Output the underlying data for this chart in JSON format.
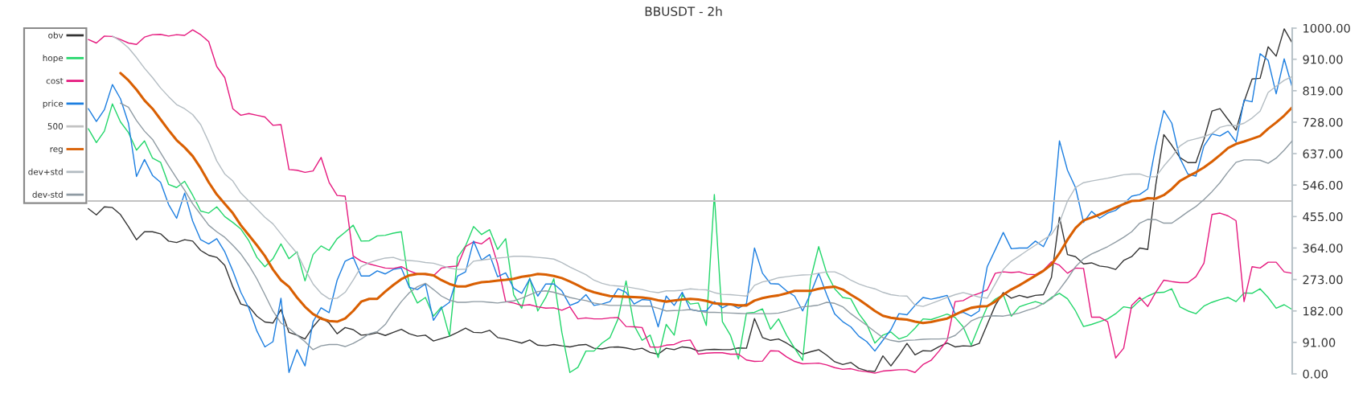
{
  "chart_data": {
    "type": "line",
    "title": "BBUSDT - 2h",
    "categories": [
      null,
      null,
      null,
      null,
      null,
      null,
      null,
      null,
      null,
      null,
      null,
      null,
      null,
      null,
      null,
      null,
      null,
      null,
      null,
      null,
      null,
      null,
      null,
      null,
      null,
      null,
      null,
      null,
      null,
      null,
      null,
      null,
      null,
      null,
      null,
      null,
      null,
      null,
      null,
      null,
      null,
      null,
      null,
      null,
      null,
      null,
      null,
      null,
      null,
      null,
      null,
      null,
      null,
      null,
      null,
      null,
      null,
      null,
      null,
      null,
      null,
      null,
      null,
      null,
      null,
      null,
      null,
      null,
      null,
      null,
      null,
      null,
      null,
      null,
      null,
      null,
      null,
      null,
      null,
      null,
      null,
      null,
      null,
      null,
      null,
      null,
      null,
      null,
      null,
      null,
      null,
      null,
      null,
      null,
      null,
      null,
      null,
      null,
      null,
      null,
      null,
      null,
      null,
      null,
      null,
      null,
      null,
      null,
      null,
      null,
      null,
      null,
      null,
      null,
      null,
      null,
      null,
      null,
      null,
      null,
      null,
      null,
      null,
      null,
      null,
      null,
      null,
      null,
      null,
      null,
      null,
      null,
      null,
      null,
      null,
      null,
      null,
      null,
      null,
      null,
      null,
      null,
      null,
      null,
      null,
      null,
      null,
      null,
      null,
      null,
      null,
      null,
      null,
      null,
      null,
      null,
      null,
      null,
      null
    ],
    "series": [
      {
        "name": "obv",
        "color": "#333333",
        "values": [
          null,
          null,
          null,
          null,
          null,
          null,
          null,
          null,
          478,
          460,
          483,
          481,
          461,
          426,
          388,
          411,
          411,
          405,
          384,
          380,
          388,
          384,
          357,
          343,
          337,
          314,
          252,
          202,
          195,
          167,
          150,
          147,
          186,
          120,
          112,
          101,
          136,
          163,
          147,
          116,
          134,
          128,
          112,
          114,
          119,
          111,
          120,
          129,
          116,
          109,
          112,
          95,
          102,
          109,
          120,
          132,
          120,
          119,
          126,
          105,
          101,
          95,
          89,
          98,
          83,
          81,
          85,
          81,
          78,
          83,
          85,
          74,
          72,
          77,
          78,
          75,
          70,
          74,
          62,
          57,
          74,
          70,
          78,
          75,
          66,
          70,
          71,
          70,
          70,
          75,
          74,
          160,
          105,
          97,
          101,
          89,
          74,
          57,
          64,
          70,
          54,
          35,
          27,
          33,
          16,
          9,
          7,
          52,
          23,
          54,
          88,
          55,
          67,
          66,
          79,
          89,
          78,
          81,
          80,
          88,
          143,
          198,
          235,
          219,
          227,
          221,
          227,
          229,
          279,
          453,
          345,
          339,
          318,
          321,
          312,
          309,
          302,
          328,
          339,
          364,
          360,
          547,
          692,
          661,
          626,
          611,
          611,
          678,
          760,
          767,
          736,
          705,
          787,
          853,
          855,
          946,
          919,
          998,
          957
        ]
      },
      {
        "name": "hope",
        "color": "#22d66a",
        "values": [
          null,
          null,
          null,
          null,
          null,
          null,
          null,
          null,
          709,
          669,
          702,
          781,
          729,
          698,
          647,
          674,
          624,
          612,
          548,
          539,
          557,
          517,
          471,
          465,
          483,
          455,
          438,
          419,
          385,
          337,
          310,
          333,
          376,
          333,
          353,
          269,
          345,
          370,
          357,
          391,
          410,
          430,
          384,
          385,
          399,
          401,
          407,
          411,
          252,
          205,
          221,
          167,
          194,
          109,
          337,
          370,
          426,
          403,
          417,
          360,
          391,
          229,
          190,
          277,
          182,
          221,
          275,
          120,
          4,
          19,
          66,
          66,
          89,
          105,
          159,
          269,
          140,
          97,
          112,
          47,
          143,
          112,
          229,
          202,
          205,
          140,
          519,
          151,
          112,
          43,
          176,
          178,
          188,
          129,
          159,
          112,
          74,
          39,
          275,
          368,
          291,
          246,
          221,
          217,
          174,
          143,
          89,
          112,
          121,
          101,
          109,
          132,
          159,
          157,
          165,
          173,
          163,
          136,
          83,
          140,
          194,
          216,
          229,
          167,
          194,
          202,
          209,
          202,
          221,
          233,
          217,
          182,
          137,
          143,
          151,
          159,
          174,
          194,
          190,
          212,
          225,
          235,
          236,
          246,
          194,
          182,
          174,
          196,
          207,
          215,
          221,
          209,
          234,
          233,
          246,
          221,
          190,
          200,
          186
        ]
      },
      {
        "name": "cost",
        "color": "#e5197e",
        "values": [
          null,
          null,
          null,
          null,
          null,
          null,
          null,
          null,
          967,
          957,
          977,
          976,
          967,
          957,
          953,
          974,
          981,
          982,
          977,
          981,
          979,
          995,
          981,
          961,
          889,
          857,
          767,
          748,
          753,
          748,
          743,
          719,
          721,
          591,
          589,
          583,
          587,
          626,
          554,
          516,
          514,
          341,
          326,
          318,
          312,
          306,
          305,
          310,
          298,
          289,
          287,
          284,
          306,
          310,
          312,
          368,
          382,
          376,
          394,
          318,
          209,
          205,
          198,
          200,
          194,
          190,
          191,
          184,
          194,
          159,
          162,
          159,
          159,
          162,
          163,
          137,
          136,
          134,
          78,
          77,
          83,
          85,
          95,
          98,
          57,
          60,
          61,
          61,
          57,
          57,
          40,
          36,
          37,
          67,
          66,
          49,
          36,
          29,
          30,
          31,
          26,
          18,
          13,
          15,
          9,
          6,
          2,
          8,
          10,
          12,
          12,
          4,
          27,
          39,
          66,
          97,
          209,
          212,
          225,
          233,
          243,
          291,
          295,
          293,
          295,
          288,
          287,
          300,
          324,
          314,
          291,
          306,
          305,
          164,
          164,
          151,
          46,
          74,
          198,
          221,
          195,
          236,
          271,
          267,
          264,
          264,
          281,
          320,
          461,
          465,
          457,
          443,
          209,
          310,
          306,
          323,
          323,
          295,
          291
        ]
      },
      {
        "name": "price",
        "color": "#1c7ee0",
        "values": [
          null,
          null,
          null,
          null,
          null,
          null,
          null,
          null,
          767,
          730,
          764,
          837,
          796,
          725,
          571,
          620,
          574,
          554,
          490,
          450,
          523,
          442,
          388,
          376,
          391,
          353,
          298,
          236,
          190,
          124,
          78,
          93,
          219,
          4,
          70,
          23,
          151,
          191,
          177,
          271,
          326,
          337,
          283,
          283,
          298,
          289,
          302,
          306,
          250,
          244,
          260,
          155,
          190,
          207,
          283,
          295,
          384,
          329,
          345,
          281,
          292,
          248,
          233,
          275,
          225,
          260,
          260,
          240,
          198,
          207,
          229,
          198,
          202,
          209,
          246,
          236,
          202,
          215,
          213,
          136,
          225,
          198,
          236,
          186,
          182,
          182,
          209,
          191,
          202,
          190,
          203,
          364,
          291,
          261,
          260,
          240,
          225,
          182,
          233,
          291,
          229,
          173,
          151,
          136,
          109,
          93,
          66,
          97,
          128,
          174,
          171,
          198,
          221,
          216,
          221,
          227,
          174,
          178,
          167,
          182,
          310,
          359,
          409,
          362,
          364,
          364,
          384,
          368,
          415,
          674,
          589,
          539,
          438,
          470,
          450,
          465,
          473,
          492,
          514,
          519,
          535,
          659,
          762,
          725,
          624,
          578,
          572,
          659,
          694,
          688,
          702,
          671,
          792,
          787,
          926,
          907,
          810,
          911,
          829
        ]
      },
      {
        "name": "500",
        "color": "#c2c2c2",
        "values": [
          null,
          null,
          null,
          null,
          null,
          null,
          null,
          null,
          500,
          500,
          500,
          500,
          500,
          500,
          500,
          500,
          500,
          500,
          500,
          500,
          500,
          500,
          500,
          500,
          500,
          500,
          500,
          500,
          500,
          500,
          500,
          500,
          500,
          500,
          500,
          500,
          500,
          500,
          500,
          500,
          500,
          500,
          500,
          500,
          500,
          500,
          500,
          500,
          500,
          500,
          500,
          500,
          500,
          500,
          500,
          500,
          500,
          500,
          500,
          500,
          500,
          500,
          500,
          500,
          500,
          500,
          500,
          500,
          500,
          500,
          500,
          500,
          500,
          500,
          500,
          500,
          500,
          500,
          500,
          500,
          500,
          500,
          500,
          500,
          500,
          500,
          500,
          500,
          500,
          500,
          500,
          500,
          500,
          500,
          500,
          500,
          500,
          500,
          500,
          500,
          500,
          500,
          500,
          500,
          500,
          500,
          500,
          500,
          500,
          500,
          500,
          500,
          500,
          500,
          500,
          500,
          500,
          500,
          500,
          500,
          500,
          500,
          500,
          500,
          500,
          500,
          500,
          500,
          500,
          500,
          500,
          500,
          500,
          500,
          500,
          500,
          500,
          500,
          500,
          500,
          500,
          500,
          500,
          500,
          500,
          500,
          500,
          500,
          500,
          500,
          500,
          500,
          500,
          500,
          500,
          500,
          500,
          500,
          500
        ]
      },
      {
        "name": "reg",
        "color": "#d95f02",
        "values": [
          null,
          null,
          null,
          null,
          null,
          null,
          null,
          null,
          null,
          null,
          null,
          null,
          870,
          849,
          822,
          791,
          767,
          736,
          705,
          676,
          655,
          630,
          595,
          554,
          519,
          492,
          465,
          430,
          401,
          372,
          341,
          302,
          271,
          252,
          221,
          194,
          173,
          160,
          153,
          151,
          160,
          182,
          209,
          217,
          217,
          238,
          257,
          274,
          285,
          289,
          289,
          285,
          271,
          260,
          253,
          253,
          260,
          265,
          267,
          270,
          272,
          275,
          281,
          284,
          289,
          287,
          283,
          277,
          267,
          256,
          244,
          236,
          230,
          225,
          224,
          223,
          222,
          221,
          218,
          213,
          209,
          212,
          215,
          217,
          215,
          211,
          204,
          202,
          201,
          198,
          198,
          212,
          219,
          224,
          227,
          233,
          240,
          240,
          240,
          246,
          250,
          252,
          244,
          229,
          215,
          199,
          182,
          168,
          162,
          159,
          157,
          151,
          147,
          150,
          155,
          160,
          171,
          182,
          191,
          195,
          196,
          209,
          229,
          244,
          256,
          270,
          284,
          298,
          316,
          349,
          388,
          422,
          444,
          452,
          461,
          471,
          481,
          491,
          500,
          501,
          508,
          507,
          517,
          535,
          558,
          571,
          583,
          597,
          614,
          633,
          653,
          665,
          672,
          680,
          688,
          709,
          727,
          747,
          771
        ]
      },
      {
        "name": "dev+std",
        "color": "#b3bcc2",
        "values": [
          null,
          null,
          null,
          null,
          null,
          null,
          null,
          null,
          null,
          null,
          null,
          977,
          963,
          943,
          915,
          884,
          857,
          827,
          802,
          779,
          767,
          750,
          721,
          671,
          616,
          578,
          558,
          523,
          500,
          477,
          453,
          434,
          405,
          376,
          349,
          302,
          260,
          233,
          217,
          219,
          236,
          271,
          310,
          322,
          329,
          335,
          337,
          329,
          328,
          326,
          322,
          320,
          313,
          306,
          302,
          303,
          326,
          329,
          332,
          335,
          337,
          340,
          340,
          339,
          337,
          335,
          332,
          322,
          309,
          298,
          287,
          271,
          262,
          256,
          254,
          252,
          248,
          244,
          238,
          235,
          240,
          240,
          242,
          246,
          244,
          243,
          235,
          230,
          229,
          227,
          225,
          256,
          266,
          271,
          278,
          281,
          284,
          286,
          287,
          291,
          295,
          295,
          285,
          271,
          260,
          252,
          246,
          236,
          229,
          226,
          225,
          199,
          195,
          203,
          212,
          221,
          229,
          235,
          229,
          222,
          219,
          260,
          302,
          326,
          341,
          357,
          372,
          388,
          403,
          438,
          500,
          539,
          553,
          558,
          562,
          566,
          571,
          576,
          578,
          578,
          570,
          570,
          601,
          628,
          659,
          674,
          680,
          686,
          695,
          713,
          719,
          718,
          725,
          740,
          760,
          814,
          832,
          849,
          860
        ]
      },
      {
        "name": "dev-std",
        "color": "#8f9ba3",
        "values": [
          null,
          null,
          null,
          null,
          null,
          null,
          null,
          null,
          null,
          null,
          null,
          null,
          783,
          771,
          733,
          702,
          678,
          640,
          602,
          566,
          531,
          492,
          461,
          430,
          411,
          395,
          372,
          347,
          314,
          275,
          229,
          182,
          147,
          132,
          112,
          93,
          70,
          81,
          85,
          85,
          79,
          88,
          101,
          116,
          122,
          143,
          178,
          209,
          235,
          252,
          262,
          244,
          225,
          213,
          207,
          207,
          209,
          209,
          207,
          205,
          208,
          211,
          219,
          229,
          238,
          240,
          236,
          229,
          221,
          216,
          212,
          205,
          201,
          198,
          198,
          198,
          197,
          196,
          196,
          190,
          182,
          183,
          184,
          186,
          182,
          178,
          178,
          177,
          176,
          175,
          174,
          174,
          174,
          174,
          176,
          181,
          188,
          194,
          196,
          199,
          207,
          204,
          194,
          174,
          157,
          140,
          122,
          105,
          97,
          93,
          97,
          98,
          100,
          101,
          101,
          102,
          111,
          132,
          153,
          163,
          167,
          168,
          167,
          171,
          176,
          184,
          191,
          204,
          217,
          244,
          275,
          310,
          333,
          347,
          357,
          368,
          381,
          395,
          411,
          436,
          447,
          446,
          436,
          436,
          452,
          469,
          484,
          504,
          527,
          553,
          584,
          612,
          619,
          619,
          618,
          609,
          624,
          647,
          674
        ]
      }
    ],
    "ylim": [
      0,
      1000
    ],
    "yticks": [
      {
        "value": 0,
        "label": "0.00"
      },
      {
        "value": 91,
        "label": "91.00"
      },
      {
        "value": 182,
        "label": "182.00"
      },
      {
        "value": 273,
        "label": "273.00"
      },
      {
        "value": 364,
        "label": "364.00"
      },
      {
        "value": 455,
        "label": "455.00"
      },
      {
        "value": 546,
        "label": "546.00"
      },
      {
        "value": 637,
        "label": "637.00"
      },
      {
        "value": 728,
        "label": "728.00"
      },
      {
        "value": 819,
        "label": "819.00"
      },
      {
        "value": 910,
        "label": "910.00"
      },
      {
        "value": 1000,
        "label": "1000.00"
      }
    ],
    "legend": "top left"
  }
}
